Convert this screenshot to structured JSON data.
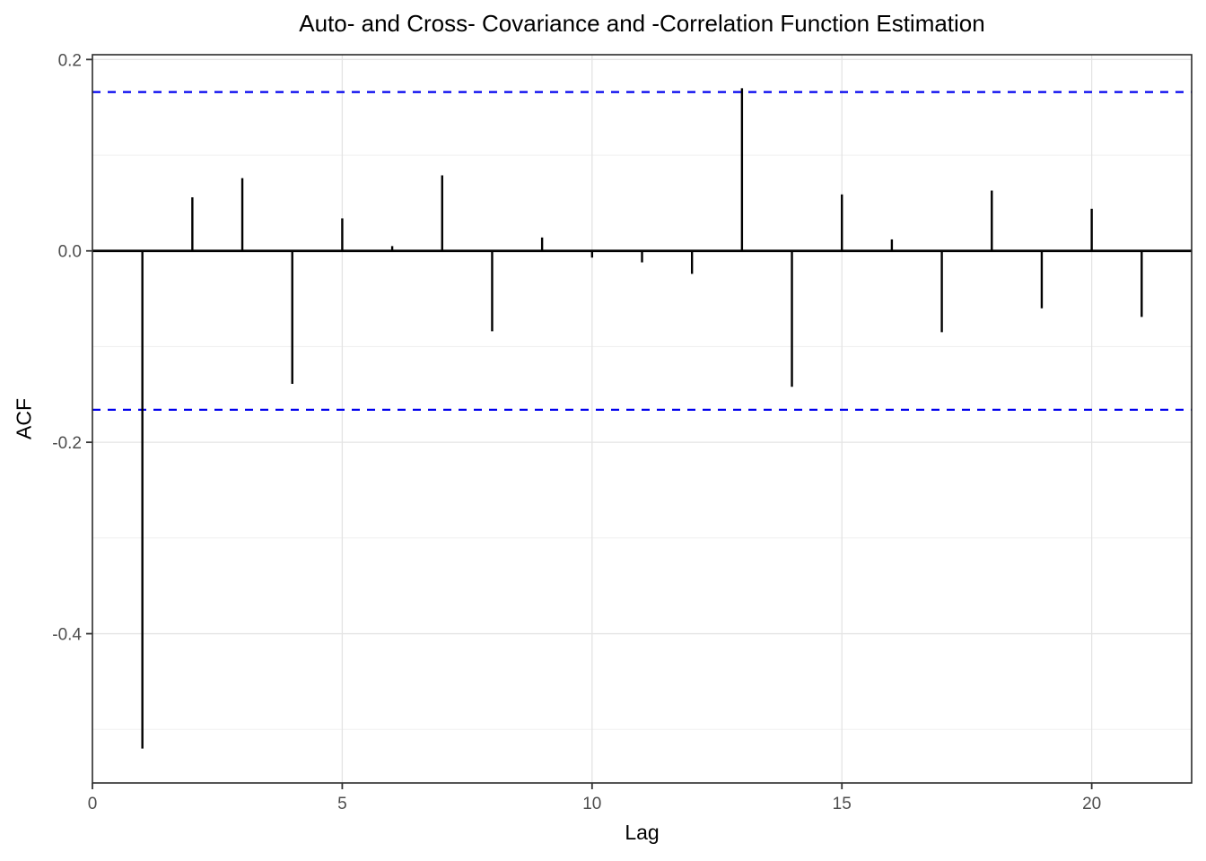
{
  "chart_data": {
    "type": "bar",
    "subtype": "acf-stem-plot",
    "title": "Auto- and Cross- Covariance and -Correlation Function Estimation",
    "xlabel": "Lag",
    "ylabel": "ACF",
    "x": [
      1,
      2,
      3,
      4,
      5,
      6,
      7,
      8,
      9,
      10,
      11,
      12,
      13,
      14,
      15,
      16,
      17,
      18,
      19,
      20,
      21
    ],
    "values": [
      -0.52,
      0.056,
      0.076,
      -0.139,
      0.034,
      0.005,
      0.079,
      -0.084,
      0.014,
      -0.007,
      -0.012,
      -0.024,
      0.17,
      -0.142,
      0.059,
      0.012,
      -0.085,
      0.063,
      -0.06,
      0.044,
      -0.069
    ],
    "conf_bounds": {
      "upper": 0.166,
      "lower": -0.166,
      "linestyle": "dashed"
    },
    "xlim": [
      0,
      22
    ],
    "ylim": [
      -0.556,
      0.205
    ],
    "x_ticks": {
      "values": [
        0,
        5,
        10,
        15,
        20
      ],
      "labels": [
        "0",
        "5",
        "10",
        "15",
        "20"
      ]
    },
    "y_ticks": {
      "values": [
        0.2,
        0.0,
        -0.2,
        -0.4
      ],
      "labels": [
        "0.2",
        "0.0",
        "-0.2",
        "-0.4"
      ]
    },
    "y_minor_gridlines": [
      0.1,
      -0.1,
      -0.3,
      -0.5
    ],
    "grid": true,
    "legend": "none",
    "colors": {
      "bar": "#000000",
      "zero_line": "#000000",
      "conf_line": "#0000EE",
      "grid_major": "#e4e4e4",
      "grid_minor": "#f0f0f0",
      "panel_border": "#2b2b2b",
      "tick_mark": "#333333",
      "tick_label": "#4d4d4d",
      "background": "#ffffff"
    }
  }
}
